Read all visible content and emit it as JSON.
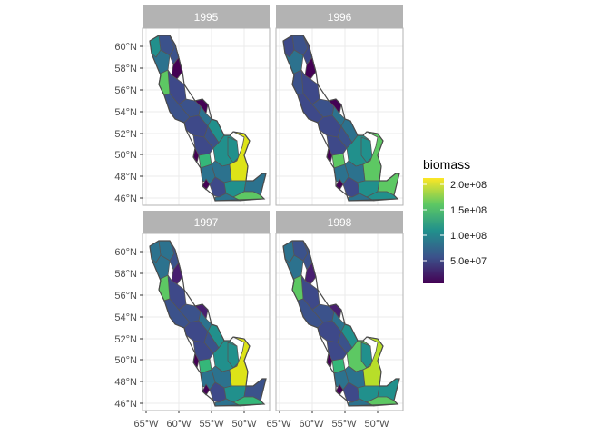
{
  "panels": [
    {
      "title": "1995"
    },
    {
      "title": "1996"
    },
    {
      "title": "1997"
    },
    {
      "title": "1998"
    }
  ],
  "axes": {
    "lat_ticks": [
      "60°N",
      "58°N",
      "56°N",
      "54°N",
      "52°N",
      "50°N",
      "48°N",
      "46°N"
    ],
    "lon_ticks": [
      "65°W",
      "60°W",
      "55°W",
      "50°W"
    ]
  },
  "legend": {
    "title": "biomass",
    "labels": [
      "2.0e+08",
      "1.5e+08",
      "1.0e+08",
      "5.0e+07"
    ],
    "colormap": "viridis"
  },
  "colors": {
    "strip": "#b3b3b3",
    "panel_border": "#b3b3b3",
    "grid": "#ebebeb",
    "polygon_outline": "#555555"
  }
}
